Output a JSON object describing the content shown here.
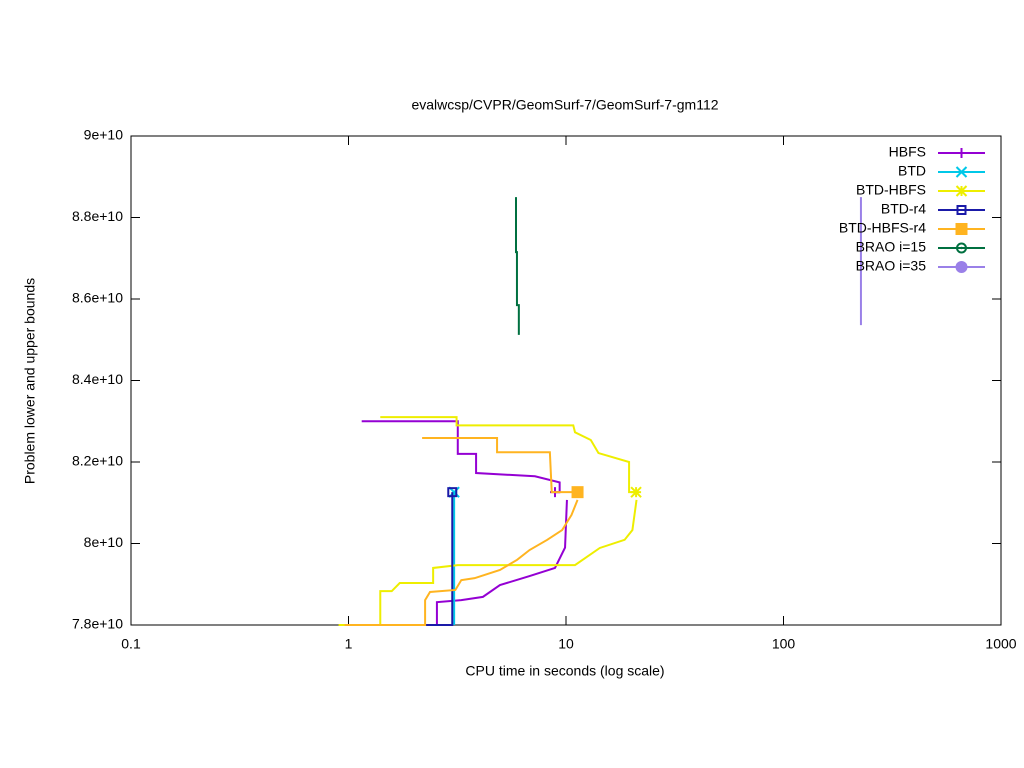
{
  "chart_data": {
    "type": "line",
    "title": "evalwcsp/CVPR/GeomSurf-7/GeomSurf-7-gm112",
    "x_label": "CPU time in seconds (log scale)",
    "y_label": "Problem lower and upper bounds",
    "x_scale": "log",
    "xlim": [
      0.1,
      1000
    ],
    "xticks": [
      0.1,
      1,
      10,
      100,
      1000
    ],
    "ylim": [
      78000000000,
      90000000000
    ],
    "yticks": [
      {
        "value": 78000000000,
        "label": "7.8e+10"
      },
      {
        "value": 80000000000,
        "label": "8e+10"
      },
      {
        "value": 82000000000,
        "label": "8.2e+10"
      },
      {
        "value": 84000000000,
        "label": "8.4e+10"
      },
      {
        "value": 86000000000,
        "label": "8.6e+10"
      },
      {
        "value": 88000000000,
        "label": "8.8e+10"
      },
      {
        "value": 90000000000,
        "label": "9e+10"
      }
    ],
    "grid": false,
    "legend": "top-right",
    "series": [
      {
        "name": "HBFS",
        "color": "#9400d3",
        "marker": "plus",
        "end_marker": true,
        "x": [
          1.15,
          3.18,
          3.18,
          3.86,
          3.86,
          7.2,
          9.35,
          9.35,
          8.9,
          null,
          10.1,
          9.9,
          8.9,
          6.8,
          4.97,
          4.15,
          3.3,
          2.55,
          2.55
        ],
        "values": [
          83000000000,
          83000000000,
          82200000000,
          82200000000,
          81730000000,
          81650000000,
          81500000000,
          81260000000,
          81260000000,
          null,
          81070000000,
          79900000000,
          79400000000,
          79200000000,
          78980000000,
          78690000000,
          78610000000,
          78560000000,
          78000000000
        ]
      },
      {
        "name": "BTD",
        "color": "#00c8e8",
        "marker": "cross",
        "end_marker": true,
        "x": [
          3.06,
          3.06
        ],
        "values": [
          78000000000,
          81260000000
        ]
      },
      {
        "name": "BTD-HBFS",
        "color": "#eeee00",
        "marker": "star",
        "end_marker": true,
        "x": [
          1.4,
          3.14,
          3.14,
          10.8,
          11.0,
          13.0,
          14.1,
          19.5,
          19.5,
          21.0,
          null,
          21.1,
          20.2,
          18.6,
          14.3,
          11.0,
          3.18,
          2.45,
          2.45,
          1.72,
          1.58,
          1.4,
          1.4,
          0.9
        ],
        "values": [
          83100000000,
          83100000000,
          82900000000,
          82900000000,
          82730000000,
          82540000000,
          82220000000,
          82000000000,
          81260000000,
          81260000000,
          null,
          81070000000,
          80330000000,
          80090000000,
          79890000000,
          79470000000,
          79470000000,
          79400000000,
          79030000000,
          79030000000,
          78830000000,
          78830000000,
          78000000000,
          78000000000
        ]
      },
      {
        "name": "BTD-r4",
        "color": "#1a1aa8",
        "marker": "open-square",
        "end_marker": true,
        "x": [
          2.26,
          3.0,
          3.0
        ],
        "values": [
          78000000000,
          78000000000,
          81260000000
        ]
      },
      {
        "name": "BTD-HBFS-r4",
        "color": "#ffb420",
        "marker": "square",
        "end_marker": true,
        "x": [
          2.18,
          4.82,
          4.82,
          8.43,
          8.6,
          11.3,
          null,
          11.3,
          10.6,
          9.6,
          8.2,
          6.8,
          5.96,
          4.97,
          3.8,
          3.3,
          3.1,
          2.37,
          2.25,
          2.25,
          0.96
        ],
        "values": [
          82590000000,
          82590000000,
          82240000000,
          82240000000,
          81260000000,
          81260000000,
          null,
          81070000000,
          80700000000,
          80330000000,
          80090000000,
          79840000000,
          79600000000,
          79350000000,
          79150000000,
          79100000000,
          78860000000,
          78810000000,
          78610000000,
          78000000000,
          78000000000
        ]
      },
      {
        "name": "BRAO i=15",
        "color": "#007040",
        "marker": "open-circle",
        "end_marker": false,
        "x": [
          5.89,
          5.89,
          5.95,
          5.95,
          6.07,
          6.07
        ],
        "values": [
          88500000000,
          87150000000,
          87150000000,
          85850000000,
          85850000000,
          85120000000
        ]
      },
      {
        "name": "BRAO i=35",
        "color": "#9a80e8",
        "marker": "circle",
        "end_marker": false,
        "x": [
          227,
          227
        ],
        "values": [
          88500000000,
          85360000000
        ]
      }
    ]
  }
}
